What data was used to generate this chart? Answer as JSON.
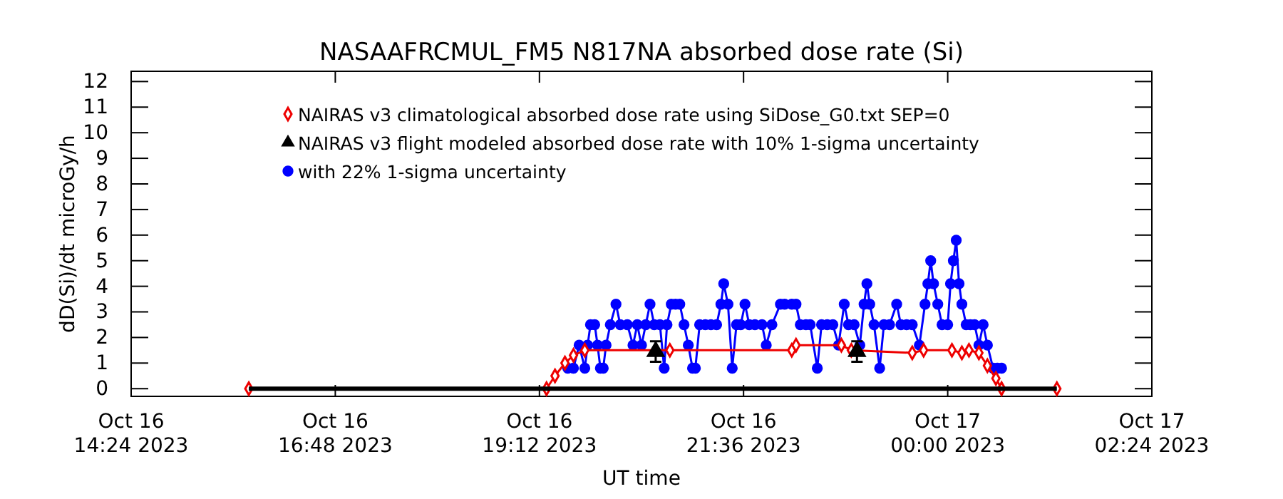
{
  "chart_data": {
    "type": "line",
    "title": "NASAAFRCMUL_FM5 N817NA absorbed dose rate (Si)",
    "xlabel": "UT time",
    "ylabel": "dD(Si)/dt microGy/h",
    "xlim": [
      "2023-10-16T14:24",
      "2023-10-17T02:24"
    ],
    "xticks": [
      {
        "value": "2023-10-16T14:24",
        "label": "Oct 16\n14:24 2023"
      },
      {
        "value": "2023-10-16T16:48",
        "label": "Oct 16\n16:48 2023"
      },
      {
        "value": "2023-10-16T19:12",
        "label": "Oct 16\n19:12 2023"
      },
      {
        "value": "2023-10-16T21:36",
        "label": "Oct 16\n21:36 2023"
      },
      {
        "value": "2023-10-17T00:00",
        "label": "Oct 17\n00:00 2023"
      },
      {
        "value": "2023-10-17T02:24",
        "label": "Oct 17\n02:24 2023"
      }
    ],
    "ylim": [
      -0.3,
      12.4
    ],
    "yticks": [
      0,
      1,
      2,
      3,
      4,
      5,
      6,
      7,
      8,
      9,
      10,
      11,
      12
    ],
    "legend": "top left",
    "series": [
      {
        "name": "with 22% 1-sigma uncertainty",
        "type": "line",
        "marker": "circle",
        "color": "#0000ff",
        "x": [
          "2023-10-16T19:32",
          "2023-10-16T19:36",
          "2023-10-16T19:40",
          "2023-10-16T19:44",
          "2023-10-16T19:46",
          "2023-10-16T19:48",
          "2023-10-16T19:51",
          "2023-10-16T19:53",
          "2023-10-16T19:55",
          "2023-10-16T19:57",
          "2023-10-16T19:59",
          "2023-10-16T20:02",
          "2023-10-16T20:06",
          "2023-10-16T20:09",
          "2023-10-16T20:14",
          "2023-10-16T20:18",
          "2023-10-16T20:21",
          "2023-10-16T20:24",
          "2023-10-16T20:27",
          "2023-10-16T20:30",
          "2023-10-16T20:33",
          "2023-10-16T20:37",
          "2023-10-16T20:40",
          "2023-10-16T20:42",
          "2023-10-16T20:45",
          "2023-10-16T20:48",
          "2023-10-16T20:51",
          "2023-10-16T20:54",
          "2023-10-16T20:57",
          "2023-10-16T21:00",
          "2023-10-16T21:02",
          "2023-10-16T21:05",
          "2023-10-16T21:09",
          "2023-10-16T21:13",
          "2023-10-16T21:17",
          "2023-10-16T21:20",
          "2023-10-16T21:22",
          "2023-10-16T21:25",
          "2023-10-16T21:28",
          "2023-10-16T21:31",
          "2023-10-16T21:34",
          "2023-10-16T21:37",
          "2023-10-16T21:40",
          "2023-10-16T21:44",
          "2023-10-16T21:49",
          "2023-10-16T21:52",
          "2023-10-16T21:56",
          "2023-10-16T22:02",
          "2023-10-16T22:05",
          "2023-10-16T22:10",
          "2023-10-16T22:13",
          "2023-10-16T22:16",
          "2023-10-16T22:20",
          "2023-10-16T22:23",
          "2023-10-16T22:28",
          "2023-10-16T22:31",
          "2023-10-16T22:35",
          "2023-10-16T22:39",
          "2023-10-16T22:43",
          "2023-10-16T22:47",
          "2023-10-16T22:50",
          "2023-10-16T22:54",
          "2023-10-16T22:58",
          "2023-10-16T23:01",
          "2023-10-16T23:03",
          "2023-10-16T23:05",
          "2023-10-16T23:08",
          "2023-10-16T23:12",
          "2023-10-16T23:15",
          "2023-10-16T23:19",
          "2023-10-16T23:24",
          "2023-10-16T23:27",
          "2023-10-16T23:31",
          "2023-10-16T23:35",
          "2023-10-16T23:40",
          "2023-10-16T23:44",
          "2023-10-16T23:46",
          "2023-10-16T23:48",
          "2023-10-16T23:50",
          "2023-10-16T23:53",
          "2023-10-16T23:56",
          "2023-10-17T00:00",
          "2023-10-17T00:02",
          "2023-10-17T00:04",
          "2023-10-17T00:06",
          "2023-10-17T00:08",
          "2023-10-17T00:10",
          "2023-10-17T00:13",
          "2023-10-17T00:16",
          "2023-10-17T00:19",
          "2023-10-17T00:22",
          "2023-10-17T00:25",
          "2023-10-17T00:28",
          "2023-10-17T00:32",
          "2023-10-17T00:35",
          "2023-10-17T00:38"
        ],
        "values": [
          0.8,
          0.8,
          1.7,
          0.8,
          1.7,
          2.5,
          2.5,
          1.7,
          0.8,
          0.8,
          1.7,
          2.5,
          3.3,
          2.5,
          2.5,
          1.7,
          2.5,
          1.7,
          2.5,
          3.3,
          2.5,
          2.5,
          0.8,
          2.5,
          3.3,
          3.3,
          3.3,
          2.5,
          1.7,
          0.8,
          0.8,
          2.5,
          2.5,
          2.5,
          2.5,
          3.3,
          4.1,
          3.3,
          0.8,
          2.5,
          2.5,
          3.3,
          2.5,
          2.5,
          2.5,
          1.7,
          2.5,
          3.3,
          3.3,
          3.3,
          3.3,
          2.5,
          2.5,
          2.5,
          0.8,
          2.5,
          2.5,
          2.5,
          1.7,
          3.3,
          2.5,
          2.5,
          1.7,
          3.3,
          4.1,
          3.3,
          2.5,
          0.8,
          2.5,
          2.5,
          3.3,
          2.5,
          2.5,
          2.5,
          1.7,
          3.3,
          4.1,
          5.0,
          4.1,
          3.3,
          2.5,
          2.5,
          4.1,
          5.0,
          5.8,
          4.1,
          3.3,
          2.5,
          2.5,
          2.5,
          1.7,
          2.5,
          1.7,
          0.8,
          0.8,
          0.8
        ]
      },
      {
        "name": "NAIRAS v3 climatological absorbed dose rate using SiDose_G0.txt SEP=0",
        "type": "line",
        "marker": "diamond",
        "color": "#ee0000",
        "x": [
          "2023-10-16T15:47",
          "2023-10-16T19:17",
          "2023-10-16T19:23",
          "2023-10-16T19:30",
          "2023-10-16T19:36",
          "2023-10-16T19:44",
          "2023-10-16T20:44",
          "2023-10-16T22:10",
          "2023-10-16T22:13",
          "2023-10-16T22:45",
          "2023-10-16T22:52",
          "2023-10-16T23:35",
          "2023-10-16T23:43",
          "2023-10-17T00:03",
          "2023-10-17T00:10",
          "2023-10-17T00:15",
          "2023-10-17T00:22",
          "2023-10-17T00:28",
          "2023-10-17T00:34",
          "2023-10-17T00:38",
          "2023-10-17T01:17"
        ],
        "values": [
          0,
          0,
          0.5,
          1.0,
          1.3,
          1.5,
          1.5,
          1.5,
          1.7,
          1.7,
          1.5,
          1.4,
          1.5,
          1.5,
          1.4,
          1.5,
          1.4,
          0.9,
          0.4,
          0,
          0
        ]
      },
      {
        "type": "line",
        "marker": "none",
        "color": "#000000",
        "x": [
          "2023-10-16T15:47",
          "2023-10-17T01:17"
        ],
        "values": [
          0,
          0
        ]
      },
      {
        "name": "NAIRAS v3 flight modeled absorbed dose rate with 10% 1-sigma uncertainty",
        "type": "scatter",
        "marker": "triangle",
        "color": "#000000",
        "x": [
          "2023-10-16T20:34",
          "2023-10-16T22:56"
        ],
        "values": [
          1.45,
          1.45
        ],
        "errors": [
          0.4,
          0.4
        ]
      }
    ]
  }
}
